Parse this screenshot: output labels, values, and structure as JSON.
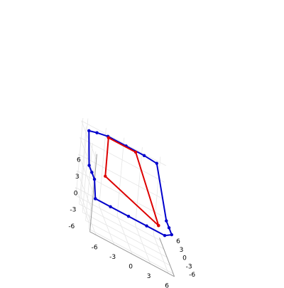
{
  "chart_data": {
    "type": "line",
    "title": "",
    "xlabel": "",
    "ylabel": "",
    "zlabel": "",
    "xlim": [
      -7,
      7
    ],
    "ylim": [
      -7,
      7
    ],
    "zlim": [
      -7,
      7
    ],
    "x_ticks": [
      "-6",
      "-3",
      "0",
      "3",
      "6"
    ],
    "y_ticks": [
      "-6",
      "-3",
      "0",
      "3",
      "6"
    ],
    "z_ticks": [
      "-6",
      "-3",
      "0",
      "3",
      "6"
    ],
    "grid": true,
    "legend": "none",
    "series": [
      {
        "color": "#0000cc",
        "points": [
          [
            -6.5,
            -6.5,
            -1
          ],
          [
            -4,
            -6.5,
            -1
          ],
          [
            -1,
            -6.5,
            -1
          ],
          [
            2,
            -6.5,
            -1
          ],
          [
            5,
            -6.5,
            -1
          ],
          [
            6.5,
            -4.5,
            -1
          ],
          [
            6.5,
            -2,
            -1
          ],
          [
            6.5,
            0.5,
            -1
          ],
          [
            5,
            4.5,
            6.5
          ],
          [
            3,
            5,
            6.5
          ],
          [
            0,
            5,
            6.5
          ],
          [
            -3,
            5,
            6.5
          ],
          [
            -5,
            4,
            6.5
          ],
          [
            -6.5,
            3,
            6.5
          ],
          [
            -6.5,
            0.5,
            1.5
          ],
          [
            -6.5,
            -2,
            1.5
          ],
          [
            -6.5,
            -4.5,
            1.5
          ],
          [
            -6.5,
            -6.5,
            -1
          ]
        ]
      },
      {
        "color": "#dd0000",
        "points": [
          [
            4.5,
            -3.5,
            -1
          ],
          [
            1.5,
            4.5,
            6.5
          ],
          [
            -3,
            4.5,
            6.5
          ],
          [
            -4,
            -0.5,
            1.5
          ],
          [
            4.5,
            -3.5,
            -1
          ]
        ]
      }
    ]
  }
}
